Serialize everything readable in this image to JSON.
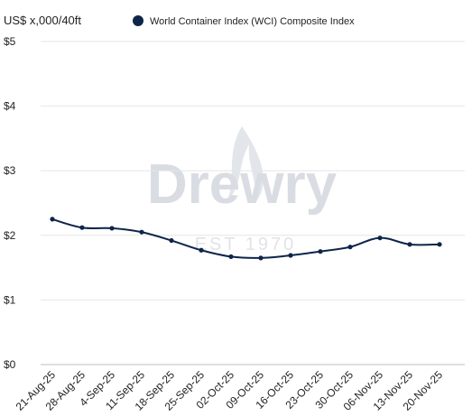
{
  "watermark": {
    "brand": "Drewry",
    "tagline": "EST 1970"
  },
  "colors": {
    "series": "#0d2549",
    "grid": "#e6e6e6",
    "axis": "#bfbfbf",
    "watermark": "#d9dde3"
  },
  "chart_data": {
    "type": "line",
    "ylabel": "US$ x,000/40ft",
    "categories": [
      "21-Aug-25",
      "28-Aug-25",
      "4-Sep-25",
      "11-Sep-25",
      "18-Sep-25",
      "25-Sep-25",
      "02-Oct-25",
      "09-Oct-25",
      "16-Oct-25",
      "23-Oct-25",
      "30-Oct-25",
      "06-Nov-25",
      "13-Nov-25",
      "20-Nov-25"
    ],
    "series": [
      {
        "name": "World Container Index (WCI) Composite Index",
        "values": [
          2.25,
          2.12,
          2.11,
          2.05,
          1.92,
          1.77,
          1.67,
          1.65,
          1.69,
          1.75,
          1.82,
          1.96,
          1.86,
          1.86
        ]
      }
    ],
    "ylim": [
      0,
      5
    ],
    "yticks": [
      "$0",
      "$1",
      "$2",
      "$3",
      "$4",
      "$5"
    ],
    "legend_position": "top",
    "grid": true
  }
}
